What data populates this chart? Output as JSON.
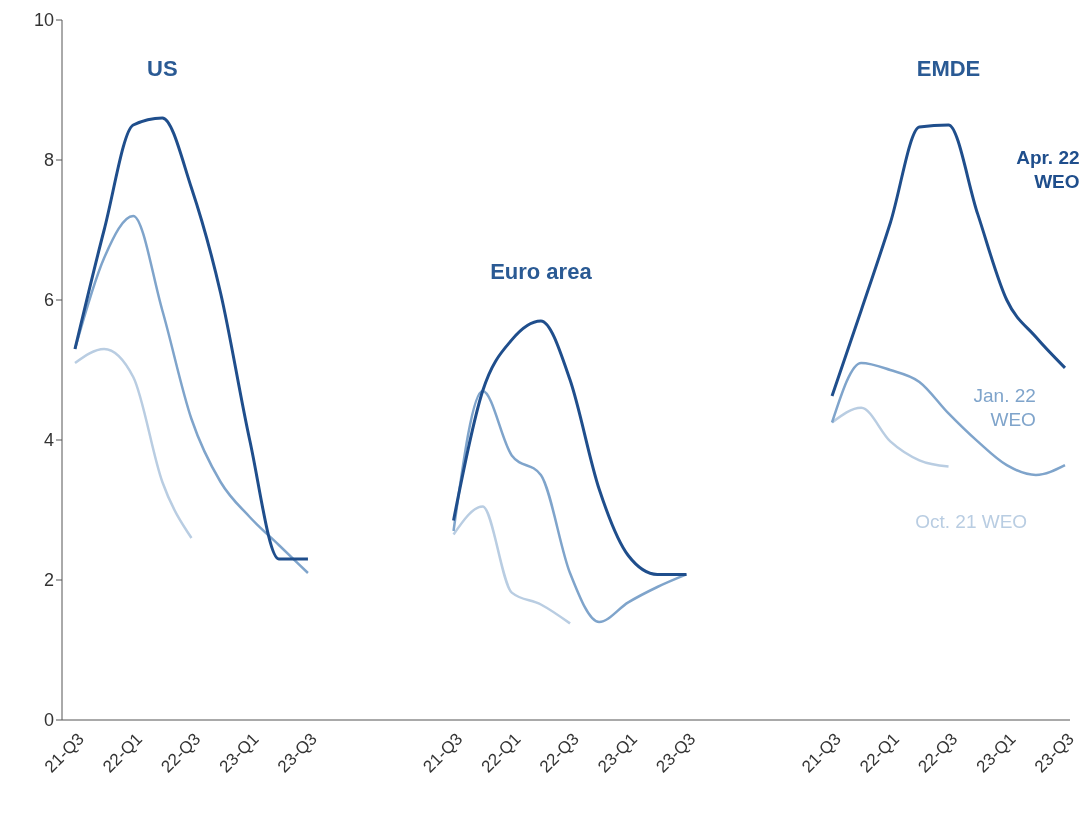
{
  "chart_data": {
    "type": "line",
    "categories": [
      "21-Q3",
      null,
      "22-Q1",
      null,
      "22-Q3",
      null,
      "23-Q1",
      null,
      "23-Q3",
      null,
      null,
      null,
      null,
      "21-Q3",
      null,
      "22-Q1",
      null,
      "22-Q3",
      null,
      "23-Q1",
      null,
      "23-Q3",
      null,
      null,
      null,
      null,
      "21-Q3",
      null,
      "22-Q1",
      null,
      "22-Q3",
      null,
      "23-Q1",
      null,
      "23-Q3"
    ],
    "series": [
      {
        "name": "Oct. 21 WEO",
        "color": "#b9cde2",
        "values": [
          5.1,
          5.3,
          4.9,
          3.4,
          2.6,
          null,
          null,
          null,
          null,
          null,
          null,
          null,
          null,
          2.65,
          3.05,
          1.82,
          1.65,
          1.38,
          null,
          null,
          null,
          null,
          null,
          null,
          null,
          null,
          4.25,
          4.46,
          3.98,
          3.71,
          3.62,
          null,
          null,
          null,
          null
        ]
      },
      {
        "name": "Jan. 22 WEO",
        "color": "#7fa4cb",
        "values": [
          5.3,
          6.6,
          7.2,
          5.85,
          4.3,
          3.4,
          2.9,
          2.5,
          2.1,
          null,
          null,
          null,
          null,
          2.7,
          4.7,
          3.78,
          3.5,
          2.1,
          1.4,
          1.68,
          1.9,
          2.08,
          null,
          null,
          null,
          null,
          4.25,
          5.1,
          5.0,
          4.83,
          4.38,
          3.98,
          3.64,
          3.5,
          3.64
        ]
      },
      {
        "name": "Apr. 22 WEO",
        "color": "#1f4e8c",
        "values": [
          5.3,
          7.0,
          8.5,
          8.6,
          7.6,
          6.1,
          4.0,
          2.3,
          2.3,
          null,
          null,
          null,
          null,
          2.85,
          4.7,
          5.43,
          5.7,
          4.86,
          3.3,
          2.35,
          2.08,
          2.08,
          null,
          null,
          null,
          null,
          4.63,
          5.85,
          7.1,
          8.47,
          8.5,
          7.23,
          6.0,
          5.47,
          5.03
        ]
      }
    ],
    "annotations": [
      "US",
      "Euro area",
      "EMDE"
    ],
    "ylim": [
      0,
      10
    ],
    "yticks": [
      0,
      2,
      4,
      6,
      8,
      10
    ],
    "grid": false,
    "legend": false,
    "line_style": "solid",
    "marker": "none"
  }
}
